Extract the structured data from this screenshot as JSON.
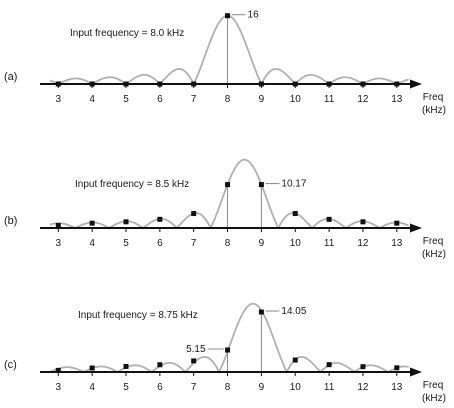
{
  "chart_data": [
    {
      "type": "line",
      "panel_label": "(a)",
      "annotation": "Input frequency  = 8.0 kHz",
      "xlabel": "Freq",
      "xunit": "(kHz)",
      "x": [
        3,
        4,
        5,
        6,
        7,
        8,
        9,
        10,
        11,
        12,
        13
      ],
      "values": [
        0,
        0,
        0,
        0,
        0,
        16,
        0,
        0,
        0,
        0,
        0
      ],
      "callouts": [
        {
          "x": 8,
          "label": "16"
        }
      ],
      "input_khz": 8.0,
      "xlim": [
        2.6,
        13.7
      ]
    },
    {
      "type": "line",
      "panel_label": "(b)",
      "annotation": "Input frequency  = 8.5 kHz",
      "xlabel": "Freq",
      "xunit": "(kHz)",
      "x": [
        3,
        4,
        5,
        6,
        7,
        8,
        9,
        10,
        11,
        12,
        13
      ],
      "values": [
        0.58,
        1.13,
        1.45,
        2.03,
        3.39,
        10.17,
        10.17,
        3.39,
        2.03,
        1.45,
        1.13
      ],
      "callouts": [
        {
          "x": 9,
          "label": "10.17"
        }
      ],
      "input_khz": 8.5,
      "xlim": [
        2.6,
        13.7
      ]
    },
    {
      "type": "line",
      "panel_label": "(c)",
      "annotation": "Input frequency  = 8.75 kHz",
      "xlabel": "Freq",
      "xunit": "(kHz)",
      "x": [
        3,
        4,
        5,
        6,
        7,
        8,
        9,
        10,
        11,
        12,
        13
      ],
      "values": [
        0.37,
        0.93,
        1.3,
        1.7,
        2.6,
        5.15,
        14.05,
        2.8,
        1.72,
        1.25,
        0.98
      ],
      "callouts": [
        {
          "x": 8,
          "label": "5.15",
          "side": "left"
        },
        {
          "x": 9,
          "label": "14.05"
        }
      ],
      "input_khz": 8.75,
      "xlim": [
        2.6,
        13.7
      ]
    }
  ]
}
